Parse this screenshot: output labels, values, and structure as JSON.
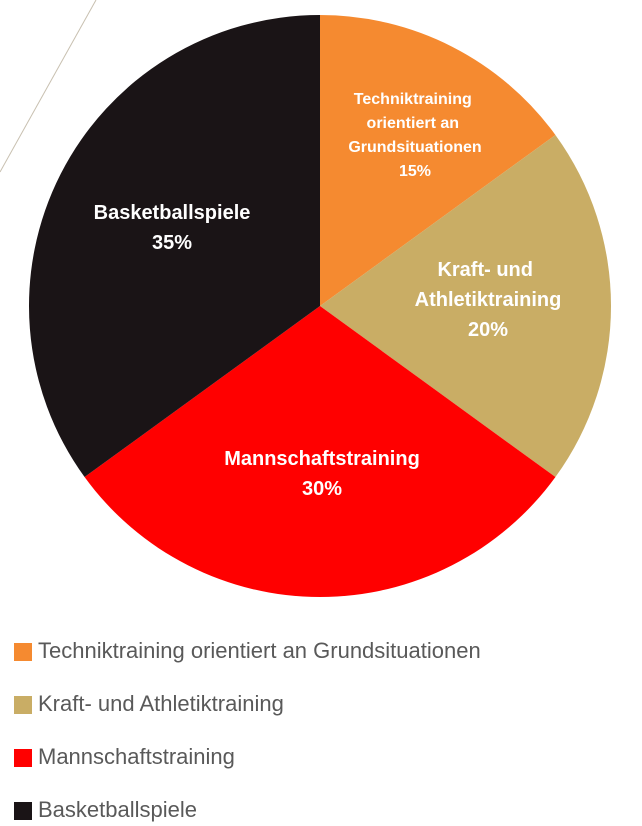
{
  "chart_data": {
    "type": "pie",
    "categories": [
      "Techniktraining orientiert an Grundsituationen",
      "Kraft- und Athletiktraining",
      "Mannschaftstraining",
      "Basketballspiele"
    ],
    "values": [
      15,
      20,
      30,
      35
    ],
    "value_labels": [
      "15%",
      "20%",
      "30%",
      "35%"
    ],
    "colors": [
      "#f58a30",
      "#c9ad65",
      "#ff0000",
      "#1a1416"
    ],
    "legend": "bottom"
  }
}
